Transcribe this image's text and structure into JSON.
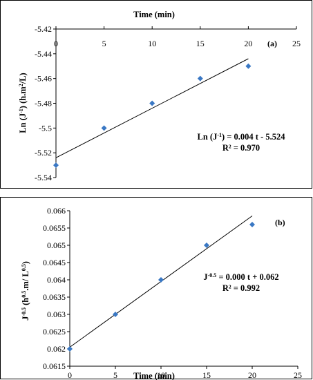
{
  "chart_data": [
    {
      "type": "scatter",
      "panel_label": "(a)",
      "xlabel": "Time (min)",
      "ylabel_parts": [
        "Ln (J",
        "-1",
        ") (h.m",
        "2",
        "/L)"
      ],
      "xlim": [
        0,
        25
      ],
      "ylim": [
        -5.54,
        -5.42
      ],
      "x_ticks": [
        0,
        5,
        10,
        15,
        20,
        25
      ],
      "x_tick_labels": [
        "0",
        "5",
        "10",
        "15",
        "20",
        "25"
      ],
      "y_ticks": [
        -5.54,
        -5.52,
        -5.5,
        -5.48,
        -5.46,
        -5.44,
        -5.42
      ],
      "y_tick_labels": [
        "-5.54",
        "-5.52",
        "-5.5",
        "-5.48",
        "-5.46",
        "-5.44",
        "-5.42"
      ],
      "x_axis_position": "top",
      "grid": false,
      "series": [
        {
          "x": [
            0,
            5,
            10,
            15,
            20
          ],
          "y": [
            -5.53,
            -5.5,
            -5.48,
            -5.46,
            -5.45
          ]
        }
      ],
      "trendline": {
        "slope": 0.004,
        "intercept": -5.524,
        "x_range": [
          0,
          20
        ]
      },
      "equation_parts": [
        "Ln (J",
        "-1",
        ") = 0.004 t - 5.524"
      ],
      "r2_text": "R² = 0.970",
      "marker_color": "#3a78c4"
    },
    {
      "type": "scatter",
      "panel_label": "(b)",
      "xlabel": "Time (min)",
      "ylabel_parts": [
        "J",
        "-0.5",
        " (h",
        "0.5",
        ".m/ L",
        "0.5",
        ")"
      ],
      "xlim": [
        0,
        25
      ],
      "ylim": [
        0.0615,
        0.066
      ],
      "x_ticks": [
        0,
        5,
        10,
        15,
        20,
        25
      ],
      "x_tick_labels": [
        "0",
        "5",
        "10",
        "15",
        "20",
        "25"
      ],
      "y_ticks": [
        0.0615,
        0.062,
        0.0625,
        0.063,
        0.0635,
        0.064,
        0.0645,
        0.065,
        0.0655,
        0.066
      ],
      "y_tick_labels": [
        "0.0615",
        "0.062",
        "0.0625",
        "0.063",
        "0.0635",
        "0.064",
        "0.0645",
        "0.065",
        "0.0655",
        "0.066"
      ],
      "x_axis_position": "bottom",
      "grid": false,
      "series": [
        {
          "x": [
            0,
            5,
            10,
            15,
            20
          ],
          "y": [
            0.062,
            0.063,
            0.064,
            0.065,
            0.0656
          ]
        }
      ],
      "trendline": {
        "slope": 0.00019,
        "intercept": 0.06205,
        "x_range": [
          0,
          20
        ]
      },
      "equation_parts": [
        "J",
        "-0.5",
        " = 0.000 t + 0.062"
      ],
      "r2_text": "R² = 0.992",
      "marker_color": "#3a78c4"
    }
  ]
}
